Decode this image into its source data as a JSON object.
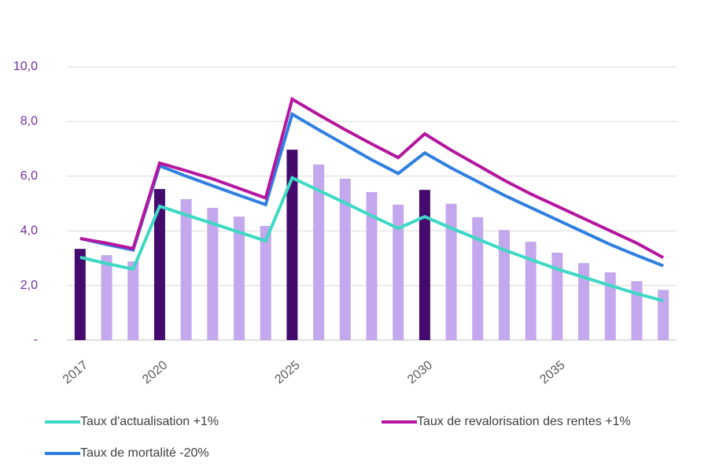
{
  "chart_data": {
    "type": "bar-line",
    "categories": [
      "2017",
      null,
      null,
      "2020",
      null,
      null,
      null,
      null,
      "2025",
      null,
      null,
      null,
      null,
      "2030",
      null,
      null,
      null,
      null,
      "2035",
      null,
      null,
      null,
      null
    ],
    "bars": {
      "values": [
        3.34,
        3.11,
        2.88,
        5.53,
        5.16,
        4.84,
        4.52,
        4.18,
        6.97,
        6.43,
        5.91,
        5.42,
        4.96,
        5.5,
        4.99,
        4.5,
        4.03,
        3.6,
        3.2,
        2.82,
        2.48,
        2.16,
        1.84
      ],
      "colors": [
        "#450a6e",
        "#c3a8ee",
        "#c3a8ee",
        "#450a6e",
        "#c3a8ee",
        "#c3a8ee",
        "#c3a8ee",
        "#c3a8ee",
        "#450a6e",
        "#c3a8ee",
        "#c3a8ee",
        "#c3a8ee",
        "#c3a8ee",
        "#450a6e",
        "#c3a8ee",
        "#c3a8ee",
        "#c3a8ee",
        "#c3a8ee",
        "#c3a8ee",
        "#c3a8ee",
        "#c3a8ee",
        "#c3a8ee",
        "#c3a8ee"
      ]
    },
    "series": [
      {
        "name": "Taux d'actualisation +1%",
        "color": "#3dd9c4",
        "values": [
          3.03,
          2.8,
          2.6,
          4.9,
          4.58,
          4.27,
          3.95,
          3.63,
          5.94,
          5.48,
          5.02,
          4.55,
          4.09,
          4.52,
          4.1,
          3.7,
          3.3,
          2.95,
          2.6,
          2.3,
          2.0,
          1.7,
          1.44
        ]
      },
      {
        "name": "Taux de mortalité -20%",
        "color": "#2f7fe0",
        "values": [
          3.72,
          3.5,
          3.3,
          6.38,
          6.0,
          5.65,
          5.3,
          4.96,
          8.27,
          7.7,
          7.15,
          6.6,
          6.1,
          6.85,
          6.3,
          5.8,
          5.3,
          4.85,
          4.4,
          3.95,
          3.5,
          3.1,
          2.72
        ]
      },
      {
        "name": "Taux de revalorisation des rentes +1%",
        "color": "#b5169f",
        "values": [
          3.72,
          3.55,
          3.35,
          6.48,
          6.2,
          5.9,
          5.55,
          5.2,
          8.82,
          8.25,
          7.7,
          7.18,
          6.68,
          7.55,
          6.95,
          6.4,
          5.85,
          5.35,
          4.9,
          4.45,
          4.0,
          3.55,
          3.02
        ]
      }
    ],
    "ylim": [
      0,
      10
    ],
    "yticks": [
      {
        "value": 0,
        "label": "-"
      },
      {
        "value": 2,
        "label": "2,0"
      },
      {
        "value": 4,
        "label": "4,0"
      },
      {
        "value": 6,
        "label": "6,0"
      },
      {
        "value": 8,
        "label": "8,0"
      },
      {
        "value": 10,
        "label": "10,0"
      }
    ],
    "grid": true,
    "legend": "bottom"
  }
}
